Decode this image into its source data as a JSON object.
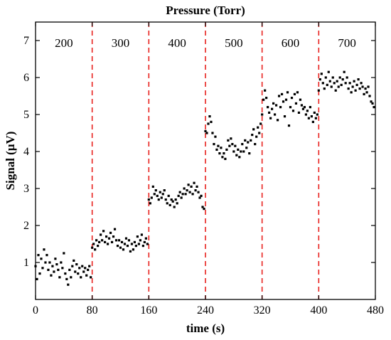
{
  "chart_data": {
    "type": "scatter",
    "title": "Pressure (Torr)",
    "xlabel": "time (s)",
    "ylabel": "Signal (μV)",
    "xlim": [
      0,
      480
    ],
    "ylim": [
      0,
      7.5
    ],
    "xticks": [
      0,
      80,
      160,
      240,
      320,
      400,
      480
    ],
    "yticks": [
      1,
      2,
      3,
      4,
      5,
      6,
      7
    ],
    "segment_boundaries": [
      80,
      160,
      240,
      320,
      400
    ],
    "divider_color": "#e8211d",
    "marker_color": "#000000",
    "segments": [
      {
        "label": "200",
        "x_start": 0,
        "x_end": 80,
        "points": [
          [
            0,
            0.9
          ],
          [
            2,
            0.55
          ],
          [
            4,
            1.2
          ],
          [
            6,
            0.7
          ],
          [
            8,
            1.1
          ],
          [
            10,
            0.85
          ],
          [
            12,
            1.35
          ],
          [
            14,
            1.0
          ],
          [
            16,
            1.2
          ],
          [
            18,
            0.8
          ],
          [
            20,
            1.0
          ],
          [
            22,
            0.65
          ],
          [
            24,
            0.9
          ],
          [
            26,
            0.75
          ],
          [
            28,
            1.1
          ],
          [
            30,
            0.95
          ],
          [
            32,
            0.8
          ],
          [
            34,
            0.6
          ],
          [
            36,
            1.0
          ],
          [
            38,
            0.85
          ],
          [
            40,
            1.25
          ],
          [
            42,
            0.7
          ],
          [
            44,
            0.55
          ],
          [
            46,
            0.4
          ],
          [
            48,
            0.8
          ],
          [
            50,
            0.6
          ],
          [
            52,
            0.9
          ],
          [
            54,
            1.05
          ],
          [
            56,
            0.75
          ],
          [
            58,
            0.95
          ],
          [
            60,
            0.7
          ],
          [
            62,
            0.85
          ],
          [
            64,
            0.6
          ],
          [
            66,
            0.9
          ],
          [
            68,
            0.75
          ],
          [
            70,
            0.85
          ],
          [
            72,
            0.65
          ],
          [
            74,
            0.8
          ],
          [
            76,
            0.9
          ],
          [
            78,
            0.6
          ]
        ]
      },
      {
        "label": "300",
        "x_start": 80,
        "x_end": 160,
        "points": [
          [
            80,
            1.4
          ],
          [
            82,
            1.5
          ],
          [
            84,
            1.35
          ],
          [
            86,
            1.6
          ],
          [
            88,
            1.45
          ],
          [
            90,
            1.55
          ],
          [
            92,
            1.75
          ],
          [
            94,
            1.6
          ],
          [
            96,
            1.85
          ],
          [
            98,
            1.55
          ],
          [
            100,
            1.7
          ],
          [
            102,
            1.5
          ],
          [
            104,
            1.65
          ],
          [
            106,
            1.8
          ],
          [
            108,
            1.55
          ],
          [
            110,
            1.7
          ],
          [
            112,
            1.9
          ],
          [
            114,
            1.6
          ],
          [
            116,
            1.45
          ],
          [
            118,
            1.6
          ],
          [
            120,
            1.4
          ],
          [
            122,
            1.55
          ],
          [
            124,
            1.35
          ],
          [
            126,
            1.5
          ],
          [
            128,
            1.65
          ],
          [
            130,
            1.45
          ],
          [
            132,
            1.6
          ],
          [
            134,
            1.3
          ],
          [
            136,
            1.5
          ],
          [
            138,
            1.35
          ],
          [
            140,
            1.55
          ],
          [
            142,
            1.45
          ],
          [
            144,
            1.7
          ],
          [
            146,
            1.5
          ],
          [
            148,
            1.6
          ],
          [
            150,
            1.75
          ],
          [
            152,
            1.45
          ],
          [
            154,
            1.55
          ],
          [
            156,
            1.65
          ],
          [
            158,
            1.5
          ]
        ]
      },
      {
        "label": "400",
        "x_start": 160,
        "x_end": 240,
        "points": [
          [
            160,
            2.7
          ],
          [
            162,
            2.6
          ],
          [
            164,
            2.75
          ],
          [
            166,
            3.05
          ],
          [
            168,
            2.85
          ],
          [
            170,
            2.95
          ],
          [
            172,
            2.8
          ],
          [
            174,
            2.7
          ],
          [
            176,
            2.9
          ],
          [
            178,
            2.75
          ],
          [
            180,
            2.85
          ],
          [
            182,
            2.95
          ],
          [
            184,
            2.7
          ],
          [
            186,
            2.6
          ],
          [
            188,
            2.8
          ],
          [
            190,
            2.55
          ],
          [
            192,
            2.7
          ],
          [
            194,
            2.65
          ],
          [
            196,
            2.5
          ],
          [
            198,
            2.7
          ],
          [
            200,
            2.6
          ],
          [
            202,
            2.8
          ],
          [
            204,
            2.9
          ],
          [
            206,
            2.75
          ],
          [
            208,
            2.85
          ],
          [
            210,
            3.0
          ],
          [
            212,
            2.85
          ],
          [
            214,
            2.95
          ],
          [
            216,
            3.1
          ],
          [
            218,
            2.9
          ],
          [
            220,
            3.05
          ],
          [
            222,
            2.85
          ],
          [
            224,
            3.15
          ],
          [
            226,
            2.95
          ],
          [
            228,
            3.05
          ],
          [
            230,
            2.9
          ],
          [
            232,
            2.75
          ],
          [
            234,
            2.8
          ],
          [
            236,
            2.5
          ],
          [
            238,
            2.45
          ]
        ]
      },
      {
        "label": "500",
        "x_start": 240,
        "x_end": 320,
        "points": [
          [
            240,
            4.55
          ],
          [
            242,
            4.5
          ],
          [
            244,
            4.75
          ],
          [
            246,
            4.95
          ],
          [
            248,
            4.8
          ],
          [
            250,
            4.5
          ],
          [
            252,
            4.2
          ],
          [
            254,
            4.4
          ],
          [
            256,
            4.05
          ],
          [
            258,
            4.15
          ],
          [
            260,
            3.95
          ],
          [
            262,
            4.1
          ],
          [
            264,
            3.85
          ],
          [
            266,
            3.95
          ],
          [
            268,
            3.8
          ],
          [
            270,
            4.05
          ],
          [
            272,
            4.3
          ],
          [
            274,
            4.15
          ],
          [
            276,
            4.35
          ],
          [
            278,
            4.2
          ],
          [
            280,
            4.0
          ],
          [
            282,
            4.15
          ],
          [
            284,
            3.9
          ],
          [
            286,
            4.05
          ],
          [
            288,
            3.85
          ],
          [
            290,
            4.0
          ],
          [
            292,
            4.2
          ],
          [
            294,
            4.0
          ],
          [
            296,
            4.3
          ],
          [
            298,
            4.1
          ],
          [
            300,
            4.25
          ],
          [
            302,
            3.95
          ],
          [
            304,
            4.3
          ],
          [
            306,
            4.45
          ],
          [
            308,
            4.6
          ],
          [
            310,
            4.2
          ],
          [
            312,
            4.4
          ],
          [
            314,
            4.65
          ],
          [
            316,
            4.5
          ],
          [
            318,
            4.75
          ]
        ]
      },
      {
        "label": "600",
        "x_start": 320,
        "x_end": 400,
        "points": [
          [
            320,
            5.0
          ],
          [
            322,
            5.4
          ],
          [
            324,
            5.65
          ],
          [
            326,
            5.45
          ],
          [
            328,
            5.2
          ],
          [
            330,
            5.05
          ],
          [
            332,
            4.9
          ],
          [
            334,
            5.15
          ],
          [
            336,
            5.3
          ],
          [
            338,
            5.0
          ],
          [
            340,
            5.25
          ],
          [
            342,
            4.85
          ],
          [
            344,
            5.5
          ],
          [
            346,
            5.2
          ],
          [
            348,
            5.55
          ],
          [
            350,
            5.35
          ],
          [
            352,
            4.95
          ],
          [
            354,
            5.4
          ],
          [
            356,
            5.6
          ],
          [
            358,
            4.7
          ],
          [
            360,
            5.2
          ],
          [
            362,
            5.45
          ],
          [
            364,
            5.1
          ],
          [
            366,
            5.55
          ],
          [
            368,
            5.3
          ],
          [
            370,
            5.6
          ],
          [
            372,
            5.05
          ],
          [
            374,
            5.4
          ],
          [
            376,
            5.25
          ],
          [
            378,
            5.15
          ],
          [
            380,
            5.2
          ],
          [
            382,
            5.0
          ],
          [
            384,
            5.1
          ],
          [
            386,
            4.9
          ],
          [
            388,
            5.2
          ],
          [
            390,
            4.95
          ],
          [
            392,
            4.8
          ],
          [
            394,
            5.05
          ],
          [
            396,
            4.9
          ],
          [
            398,
            5.0
          ]
        ]
      },
      {
        "label": "700",
        "x_start": 400,
        "x_end": 480,
        "points": [
          [
            400,
            5.65
          ],
          [
            402,
            5.95
          ],
          [
            404,
            6.1
          ],
          [
            406,
            5.85
          ],
          [
            408,
            5.7
          ],
          [
            410,
            6.0
          ],
          [
            412,
            5.8
          ],
          [
            414,
            6.15
          ],
          [
            416,
            5.9
          ],
          [
            418,
            5.75
          ],
          [
            420,
            6.0
          ],
          [
            422,
            5.85
          ],
          [
            424,
            5.65
          ],
          [
            426,
            5.9
          ],
          [
            428,
            5.75
          ],
          [
            430,
            6.0
          ],
          [
            432,
            5.8
          ],
          [
            434,
            5.95
          ],
          [
            436,
            6.15
          ],
          [
            438,
            5.85
          ],
          [
            440,
            6.0
          ],
          [
            442,
            5.7
          ],
          [
            444,
            5.85
          ],
          [
            446,
            5.6
          ],
          [
            448,
            5.75
          ],
          [
            450,
            5.9
          ],
          [
            452,
            5.65
          ],
          [
            454,
            5.8
          ],
          [
            456,
            5.95
          ],
          [
            458,
            5.7
          ],
          [
            460,
            5.85
          ],
          [
            462,
            5.75
          ],
          [
            464,
            5.55
          ],
          [
            466,
            5.7
          ],
          [
            468,
            5.6
          ],
          [
            470,
            5.75
          ],
          [
            472,
            5.5
          ],
          [
            474,
            5.35
          ],
          [
            476,
            5.3
          ],
          [
            478,
            5.2
          ]
        ]
      }
    ]
  }
}
